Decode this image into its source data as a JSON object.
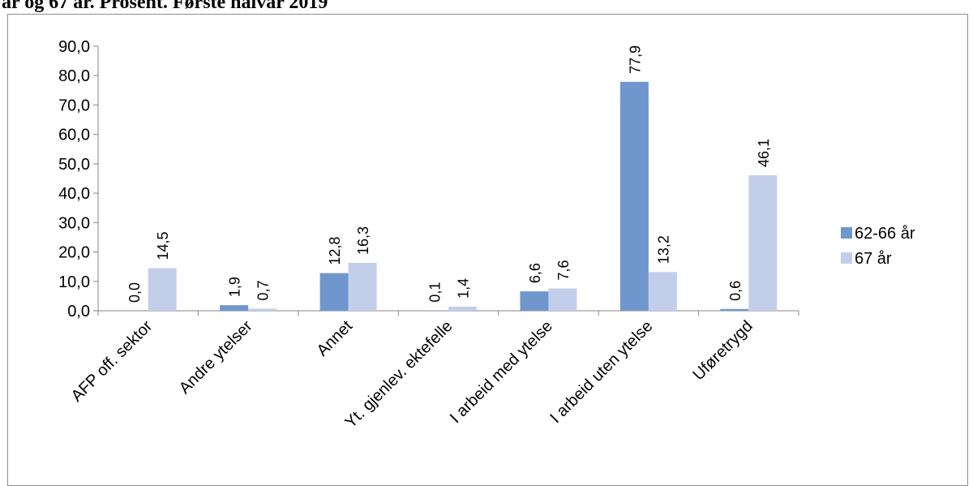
{
  "caption": "år og 67 år. Prosent. Første halvår 2019",
  "chart_data": {
    "type": "bar",
    "categories": [
      "AFP off. sektor",
      "Andre ytelser",
      "Annet",
      "Yt. gjenlev. ektefelle",
      "I arbeid med ytelse",
      "I arbeid uten ytelse",
      "Uføretrygd"
    ],
    "series": [
      {
        "name": "62-66 år",
        "values": [
          0.0,
          1.9,
          12.8,
          0.1,
          6.6,
          77.9,
          0.6
        ],
        "labels": [
          "0,0",
          "1,9",
          "12,8",
          "0,1",
          "6,6",
          "77,9",
          "0,6"
        ],
        "color": "#6f97cd"
      },
      {
        "name": "67 år",
        "values": [
          14.5,
          0.7,
          16.3,
          1.4,
          7.6,
          13.2,
          46.1
        ],
        "labels": [
          "14,5",
          "0,7",
          "16,3",
          "1,4",
          "7,6",
          "13,2",
          "46,1"
        ],
        "color": "#c3cfea"
      }
    ],
    "yticks": [
      "0,0",
      "10,0",
      "20,0",
      "30,0",
      "40,0",
      "50,0",
      "60,0",
      "70,0",
      "80,0",
      "90,0"
    ],
    "ylim": [
      0,
      90
    ],
    "title": "",
    "xlabel": "",
    "ylabel": "",
    "grid": false,
    "legend_position": "right"
  }
}
